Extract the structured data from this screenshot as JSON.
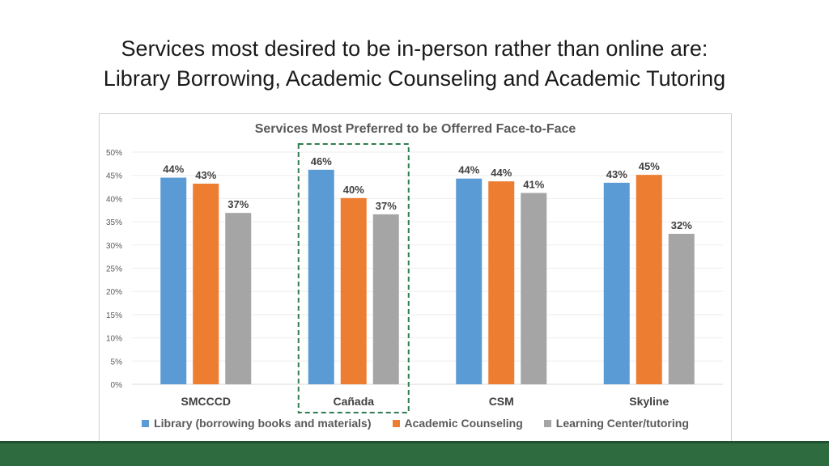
{
  "slide": {
    "title_line1": "Services most desired to be in-person rather than online are:",
    "title_line2": "Library Borrowing, Academic Counseling and Academic Tutoring"
  },
  "colors": {
    "library": "#5b9bd5",
    "counseling": "#ed7d31",
    "tutoring": "#a5a5a5",
    "highlight_box": "#2e7d4f",
    "footer": "#2e6b3f"
  },
  "chart_data": {
    "type": "bar",
    "title": "Services Most Preferred to be Offerred Face-to-Face",
    "categories": [
      "SMCCCD",
      "Cañada",
      "CSM",
      "Skyline"
    ],
    "series": [
      {
        "name": "Library (borrowing books and materials)",
        "values": [
          44.5,
          46.2,
          44.3,
          43.4
        ],
        "labels": [
          "44%",
          "46%",
          "44%",
          "43%"
        ]
      },
      {
        "name": "Academic Counseling",
        "values": [
          43.2,
          40.1,
          43.7,
          45.1
        ],
        "labels": [
          "43%",
          "40%",
          "44%",
          "45%"
        ]
      },
      {
        "name": "Learning Center/tutoring",
        "values": [
          36.9,
          36.6,
          41.2,
          32.4
        ],
        "labels": [
          "37%",
          "37%",
          "41%",
          "32%"
        ]
      }
    ],
    "ylim": [
      0,
      50
    ],
    "yticks": [
      "0%",
      "5%",
      "10%",
      "15%",
      "20%",
      "25%",
      "30%",
      "35%",
      "40%",
      "45%",
      "50%"
    ],
    "grid": true,
    "legend_position": "bottom",
    "highlighted_category": "Cañada"
  }
}
